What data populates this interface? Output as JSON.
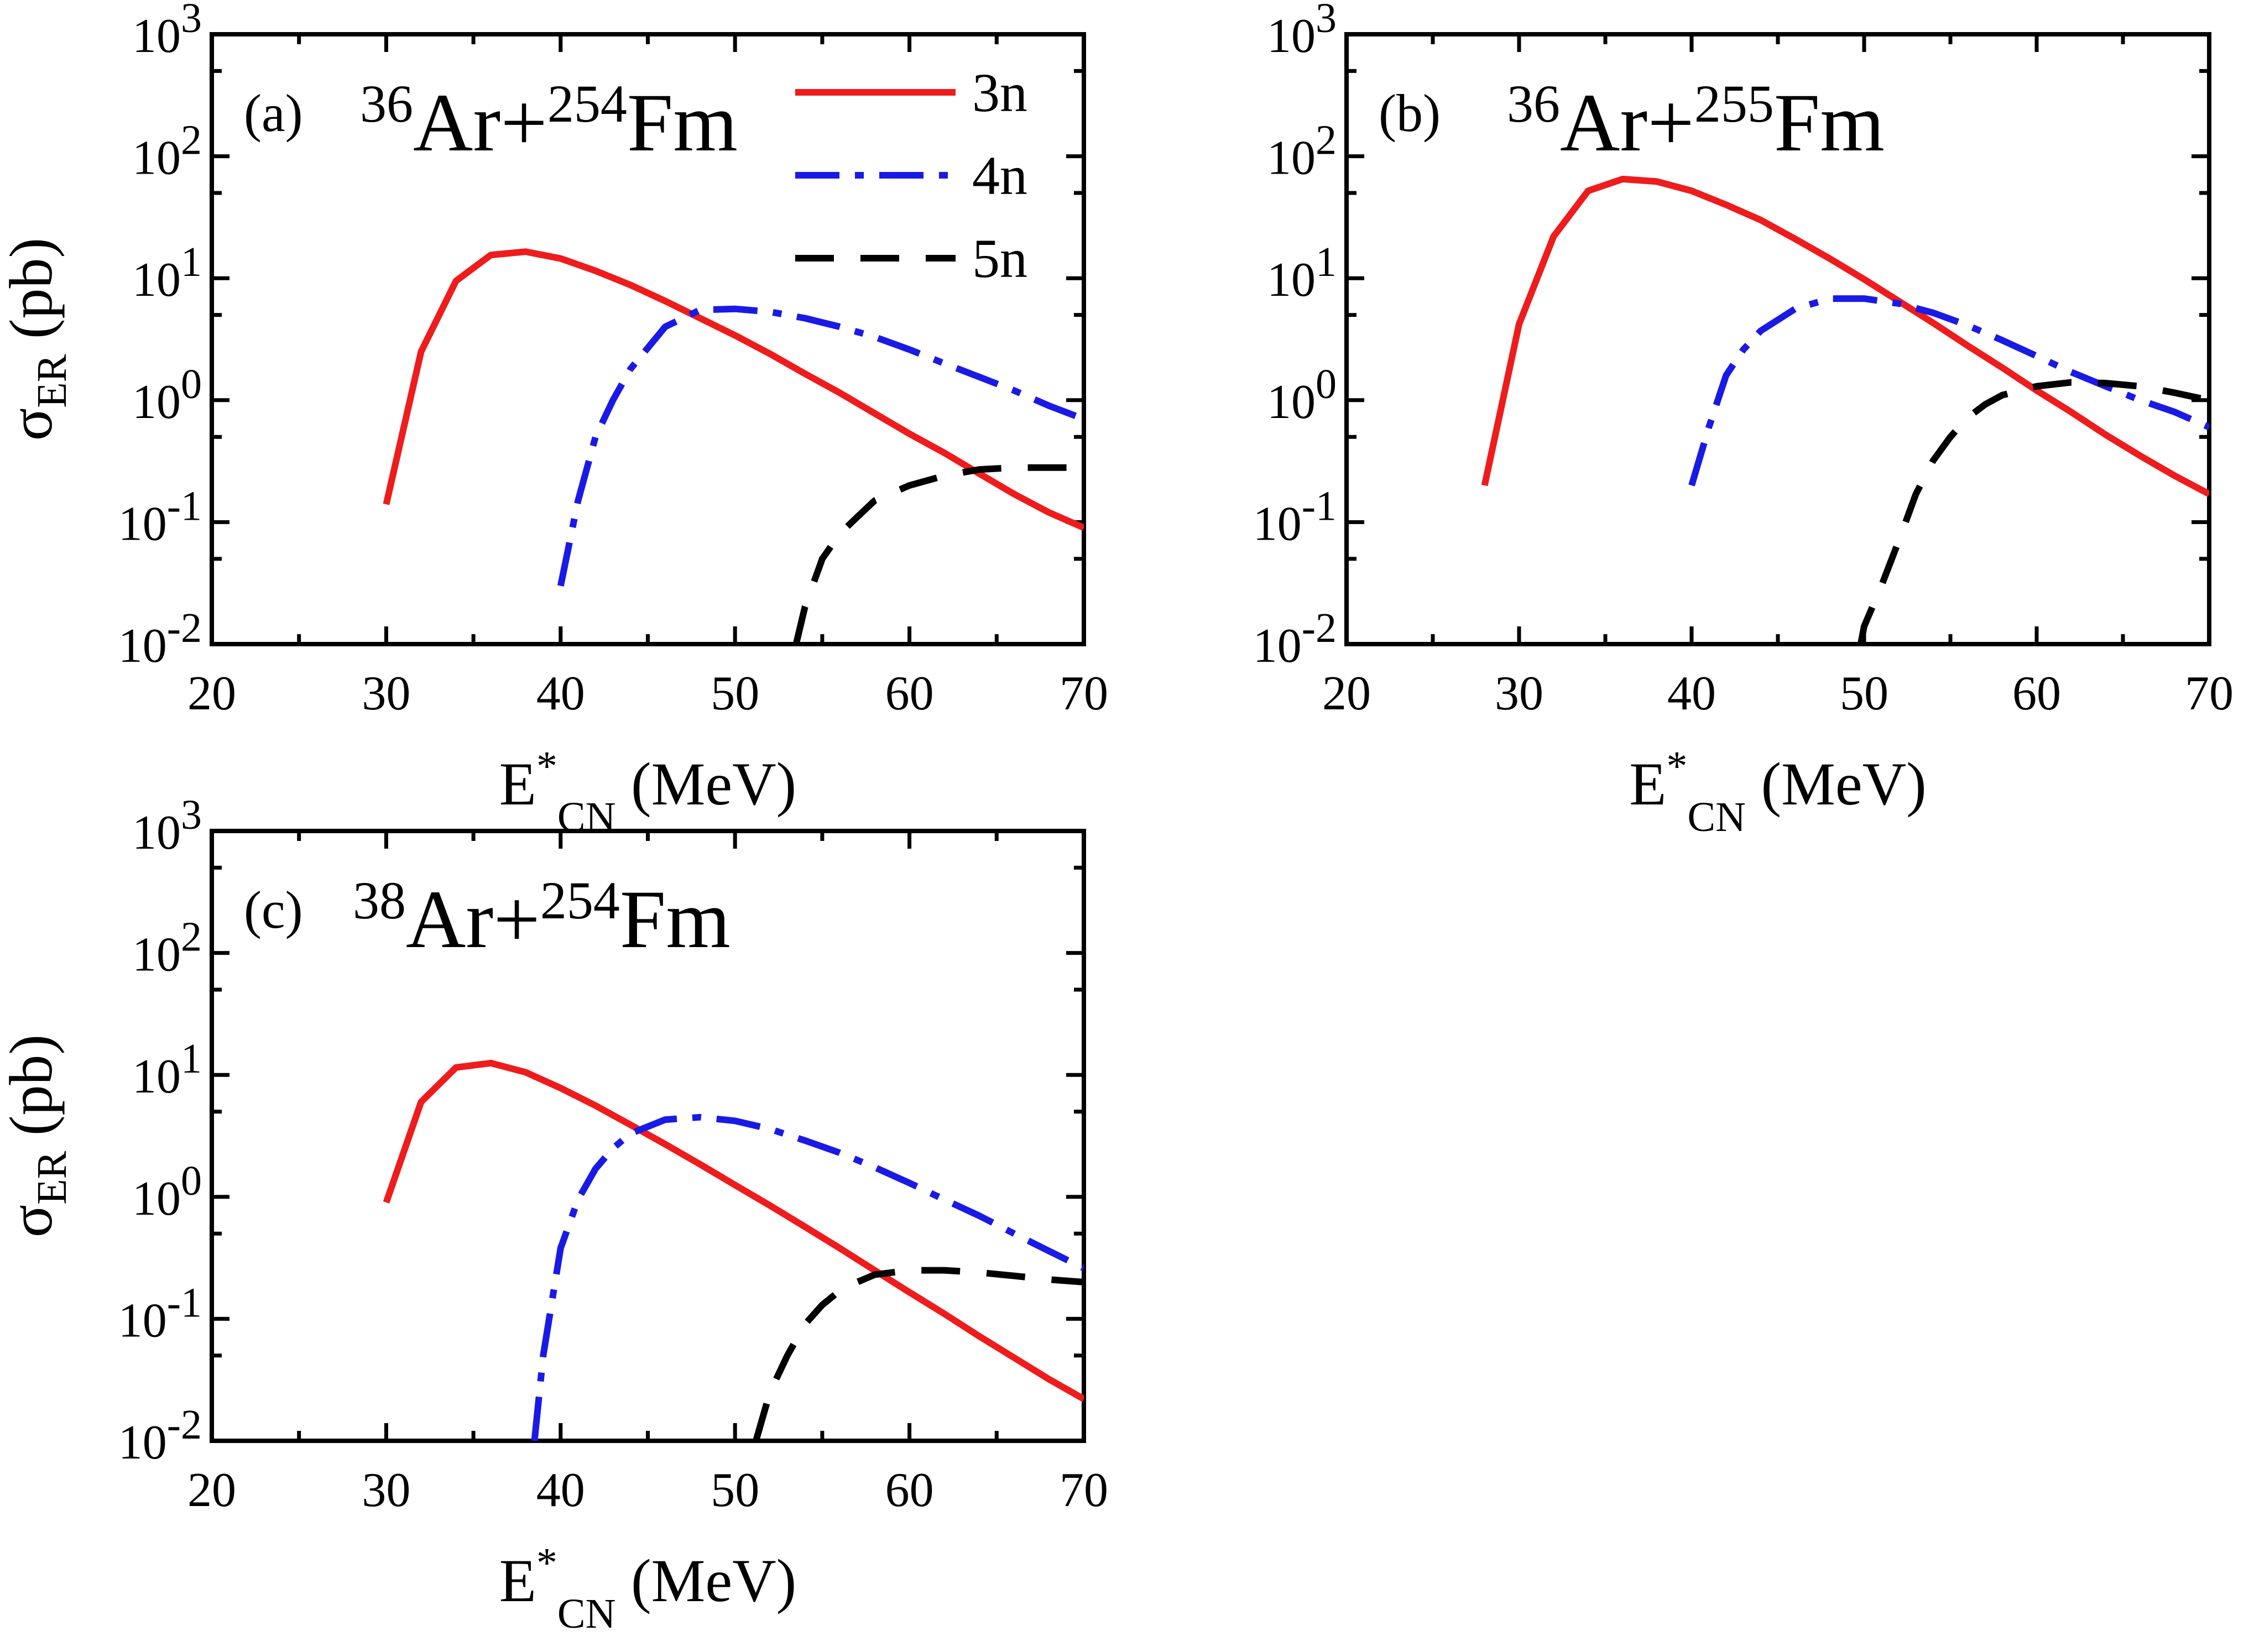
{
  "colors": {
    "3n": "#ee1c1c",
    "4n": "#1a1ae6",
    "5n": "#000000",
    "axis": "#000000"
  },
  "axes": {
    "x_title_base": "E",
    "x_title_sup": "*",
    "x_title_sub": "CN",
    "x_title_unit": " (MeV)",
    "y_title_base": "σ",
    "y_title_sub": "ER",
    "y_title_unit": " (pb)",
    "x_ticks": [
      "20",
      "30",
      "40",
      "50",
      "60",
      "70"
    ],
    "y_ticks": [
      {
        "base": "10",
        "exp": "-2"
      },
      {
        "base": "10",
        "exp": "-1"
      },
      {
        "base": "10",
        "exp": "0"
      },
      {
        "base": "10",
        "exp": "1"
      },
      {
        "base": "10",
        "exp": "2"
      },
      {
        "base": "10",
        "exp": "3"
      }
    ]
  },
  "legend": [
    {
      "key": "3n",
      "label": "3n"
    },
    {
      "key": "4n",
      "label": "4n"
    },
    {
      "key": "5n",
      "label": "5n"
    }
  ],
  "chart_data": [
    {
      "type": "line",
      "panel_label": "(a)",
      "reaction": {
        "a1": "36",
        "el1": "Ar+",
        "a2": "254",
        "el2": "Fm"
      },
      "xlabel": "E*CN (MeV)",
      "ylabel": "σER (pb)",
      "xlim": [
        20,
        70
      ],
      "ylim": [
        0.01,
        1000
      ],
      "yscale": "log",
      "legend_position": "top-right",
      "series": [
        {
          "name": "3n",
          "x": [
            30,
            32,
            34,
            36,
            38,
            40,
            42,
            44,
            46,
            48,
            50,
            52,
            54,
            56,
            58,
            60,
            62,
            64,
            66,
            68,
            70
          ],
          "y": [
            0.14,
            2.5,
            9.5,
            15.5,
            16.5,
            14.5,
            11.5,
            8.8,
            6.5,
            4.7,
            3.4,
            2.4,
            1.65,
            1.15,
            0.78,
            0.53,
            0.37,
            0.25,
            0.17,
            0.12,
            0.09
          ]
        },
        {
          "name": "4n",
          "x": [
            40,
            41,
            42,
            43,
            44,
            46,
            48,
            50,
            52,
            54,
            56,
            58,
            60,
            62,
            64,
            66,
            68,
            70
          ],
          "y": [
            0.03,
            0.15,
            0.5,
            1.0,
            1.8,
            4.0,
            5.5,
            5.6,
            5.3,
            4.7,
            4.0,
            3.3,
            2.6,
            2.0,
            1.55,
            1.2,
            0.9,
            0.7
          ]
        },
        {
          "name": "5n",
          "x": [
            53.5,
            54,
            55,
            56,
            57,
            58,
            60,
            62,
            64,
            66,
            68,
            70
          ],
          "y": [
            0.01,
            0.02,
            0.05,
            0.08,
            0.11,
            0.15,
            0.2,
            0.24,
            0.27,
            0.28,
            0.28,
            0.28
          ]
        }
      ]
    },
    {
      "type": "line",
      "panel_label": "(b)",
      "reaction": {
        "a1": "36",
        "el1": "Ar+",
        "a2": "255",
        "el2": "Fm"
      },
      "xlabel": "E*CN (MeV)",
      "ylabel": "",
      "xlim": [
        20,
        70
      ],
      "ylim": [
        0.01,
        1000
      ],
      "yscale": "log",
      "series": [
        {
          "name": "3n",
          "x": [
            28,
            30,
            32,
            34,
            36,
            38,
            40,
            42,
            44,
            46,
            48,
            50,
            52,
            54,
            56,
            58,
            60,
            62,
            64,
            66,
            68,
            70
          ],
          "y": [
            0.2,
            4.2,
            22,
            52,
            65,
            62,
            52,
            40,
            30,
            21,
            14.5,
            9.8,
            6.5,
            4.3,
            2.8,
            1.85,
            1.2,
            0.8,
            0.52,
            0.35,
            0.24,
            0.17
          ]
        },
        {
          "name": "4n",
          "x": [
            40,
            41,
            42,
            43,
            44,
            46,
            48,
            50,
            52,
            54,
            56,
            58,
            60,
            62,
            64,
            66,
            68,
            70
          ],
          "y": [
            0.2,
            0.6,
            1.6,
            2.6,
            3.7,
            5.6,
            6.8,
            6.8,
            6.2,
            5.2,
            4.1,
            3.1,
            2.3,
            1.7,
            1.3,
            1.0,
            0.8,
            0.6
          ]
        },
        {
          "name": "5n",
          "x": [
            49.8,
            50,
            51,
            52,
            53,
            54,
            55,
            56,
            57,
            58,
            60,
            62,
            64,
            66,
            68,
            70
          ],
          "y": [
            0.01,
            0.014,
            0.03,
            0.07,
            0.17,
            0.32,
            0.5,
            0.72,
            0.92,
            1.1,
            1.3,
            1.4,
            1.38,
            1.3,
            1.15,
            1.0
          ]
        }
      ]
    },
    {
      "type": "line",
      "panel_label": "(c)",
      "reaction": {
        "a1": "38",
        "el1": "Ar+",
        "a2": "254",
        "el2": "Fm"
      },
      "xlabel": "E*CN (MeV)",
      "ylabel": "σER (pb)",
      "xlim": [
        20,
        70
      ],
      "ylim": [
        0.01,
        1000
      ],
      "yscale": "log",
      "series": [
        {
          "name": "3n",
          "x": [
            30,
            32,
            34,
            36,
            38,
            40,
            42,
            44,
            46,
            48,
            50,
            52,
            54,
            56,
            58,
            60,
            62,
            64,
            66,
            68,
            70
          ],
          "y": [
            0.9,
            6.0,
            11.5,
            12.5,
            10.5,
            7.8,
            5.6,
            3.9,
            2.7,
            1.85,
            1.25,
            0.85,
            0.57,
            0.38,
            0.25,
            0.165,
            0.11,
            0.072,
            0.048,
            0.032,
            0.022
          ]
        },
        {
          "name": "4n",
          "x": [
            38.5,
            39,
            40,
            41,
            42,
            43,
            44,
            46,
            48,
            50,
            52,
            54,
            56,
            58,
            60,
            62,
            64,
            66,
            68,
            70
          ],
          "y": [
            0.01,
            0.05,
            0.38,
            0.95,
            1.7,
            2.5,
            3.3,
            4.3,
            4.5,
            4.2,
            3.6,
            2.9,
            2.3,
            1.75,
            1.3,
            0.95,
            0.7,
            0.5,
            0.36,
            0.26
          ]
        },
        {
          "name": "5n",
          "x": [
            51.2,
            52,
            53,
            54,
            55,
            56,
            57,
            58,
            60,
            62,
            64,
            66,
            68,
            70
          ],
          "y": [
            0.01,
            0.025,
            0.05,
            0.09,
            0.13,
            0.17,
            0.2,
            0.23,
            0.25,
            0.25,
            0.24,
            0.225,
            0.21,
            0.2
          ]
        }
      ]
    }
  ]
}
